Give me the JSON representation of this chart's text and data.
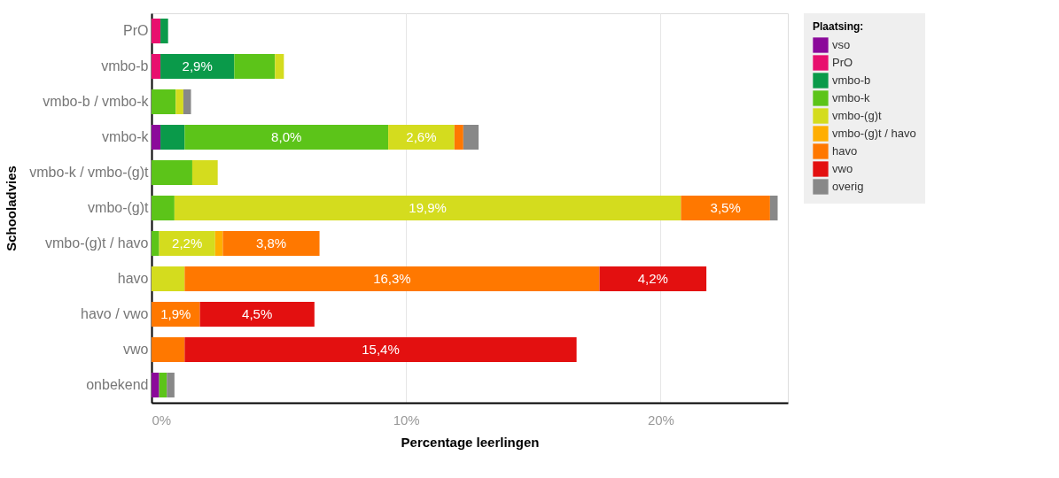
{
  "chart_data": {
    "type": "bar",
    "orientation": "horizontal",
    "stacked": true,
    "xlabel": "Percentage leerlingen",
    "ylabel": "Schooladvies",
    "legend_title": "Plaatsing:",
    "legend": "top right",
    "grid": "x",
    "categories": [
      "PrO",
      "vmbo-b",
      "vmbo-b / vmbo-k",
      "vmbo-k",
      "vmbo-k / vmbo-(g)t",
      "vmbo-(g)t",
      "vmbo-(g)t / havo",
      "havo",
      "havo / vwo",
      "vwo",
      "onbekend"
    ],
    "xlim": [
      0,
      25
    ],
    "xticks": [
      {
        "value": 0,
        "label": "0%"
      },
      {
        "value": 10,
        "label": "10%"
      },
      {
        "value": 20,
        "label": "20%"
      }
    ],
    "series": [
      {
        "name": "vso",
        "color": "#8b0a9a",
        "values": [
          null,
          null,
          null,
          0.35,
          null,
          null,
          null,
          null,
          null,
          null,
          0.3
        ]
      },
      {
        "name": "PrO",
        "color": "#e8106e",
        "values": [
          0.35,
          0.35,
          null,
          null,
          null,
          null,
          null,
          null,
          null,
          null,
          null
        ]
      },
      {
        "name": "vmbo-b",
        "color": "#0a9a4a",
        "values": [
          0.3,
          2.9,
          null,
          0.95,
          null,
          null,
          null,
          null,
          null,
          null,
          null
        ],
        "value_labels": [
          null,
          "2,9%",
          null,
          null,
          null,
          null,
          null,
          null,
          null,
          null,
          null
        ]
      },
      {
        "name": "vmbo-k",
        "color": "#5cc419",
        "values": [
          null,
          1.6,
          0.95,
          8.0,
          1.6,
          0.9,
          0.3,
          null,
          null,
          null,
          0.3
        ],
        "value_labels": [
          null,
          null,
          null,
          "8,0%",
          null,
          null,
          null,
          null,
          null,
          null,
          null
        ]
      },
      {
        "name": "vmbo-(g)t",
        "color": "#d4dc1e",
        "values": [
          null,
          0.35,
          0.3,
          2.6,
          1.0,
          19.9,
          2.2,
          1.3,
          null,
          null,
          null
        ],
        "value_labels": [
          null,
          null,
          null,
          "2,6%",
          null,
          "19,9%",
          "2,2%",
          null,
          null,
          null,
          null
        ]
      },
      {
        "name": "vmbo-(g)t / havo",
        "color": "#ffae00",
        "values": [
          null,
          null,
          null,
          null,
          null,
          null,
          0.3,
          null,
          null,
          null,
          null
        ]
      },
      {
        "name": "havo",
        "color": "#ff7800",
        "values": [
          null,
          null,
          null,
          0.35,
          null,
          3.5,
          3.8,
          16.3,
          1.9,
          1.3,
          null
        ],
        "value_labels": [
          null,
          null,
          null,
          null,
          null,
          "3,5%",
          "3,8%",
          "16,3%",
          "1,9%",
          null,
          null
        ]
      },
      {
        "name": "vwo",
        "color": "#e31010",
        "values": [
          null,
          null,
          null,
          null,
          null,
          null,
          null,
          4.2,
          4.5,
          15.4,
          null
        ],
        "value_labels": [
          null,
          null,
          null,
          null,
          null,
          null,
          null,
          "4,2%",
          "4,5%",
          "15,4%",
          null
        ]
      },
      {
        "name": "overig",
        "color": "#888888",
        "values": [
          null,
          null,
          0.3,
          0.6,
          null,
          0.3,
          null,
          null,
          null,
          null,
          0.3
        ]
      }
    ]
  }
}
